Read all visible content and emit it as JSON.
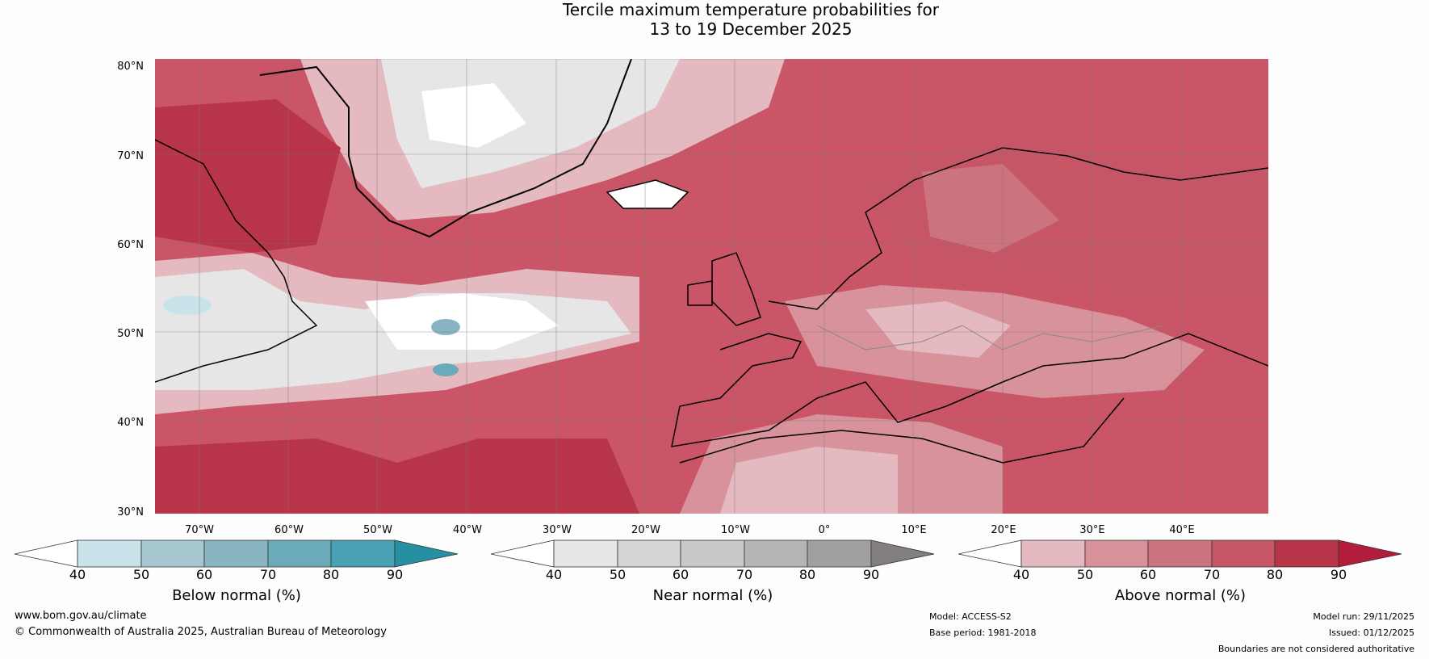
{
  "title": {
    "line1": "Tercile maximum temperature probabilities for",
    "line2": "13 to 19 December 2025"
  },
  "map": {
    "lat_labels": [
      "80°N",
      "70°N",
      "60°N",
      "50°N",
      "40°N",
      "30°N"
    ],
    "lon_labels": [
      "70°W",
      "60°W",
      "50°W",
      "40°W",
      "30°W",
      "20°W",
      "10°W",
      "0°",
      "10°E",
      "20°E",
      "30°E",
      "40°E"
    ]
  },
  "colorbars": {
    "below": {
      "label": "Below normal (%)",
      "ticks": [
        "40",
        "50",
        "60",
        "70",
        "80",
        "90"
      ],
      "colors": [
        "#ffffff",
        "#c9e3ea",
        "#a6c7cf",
        "#89b4c2",
        "#6aaabb",
        "#48a2b3",
        "#268fa2"
      ]
    },
    "near": {
      "label": "Near normal (%)",
      "ticks": [
        "40",
        "50",
        "60",
        "70",
        "80",
        "90"
      ],
      "colors": [
        "#ffffff",
        "#e6e6e6",
        "#d6d6d6",
        "#c8c8c8",
        "#b5b5b5",
        "#a0a0a0",
        "#837f80"
      ]
    },
    "above": {
      "label": "Above normal (%)",
      "ticks": [
        "40",
        "50",
        "60",
        "70",
        "80",
        "90"
      ],
      "colors": [
        "#ffffff",
        "#e4b9c0",
        "#d8929c",
        "#cb737f",
        "#c65666",
        "#b83448",
        "#b11d3a"
      ]
    }
  },
  "footer": {
    "url": "www.bom.gov.au/climate",
    "copyright": "© Commonwealth of Australia 2025, Australian Bureau of Meteorology",
    "model": "Model: ACCESS-S2",
    "base_period": "Base period: 1981-2018",
    "model_run": "Model run: 29/11/2025",
    "issued": "Issued: 01/12/2025",
    "disclaimer": "Boundaries are not considered authoritative"
  }
}
